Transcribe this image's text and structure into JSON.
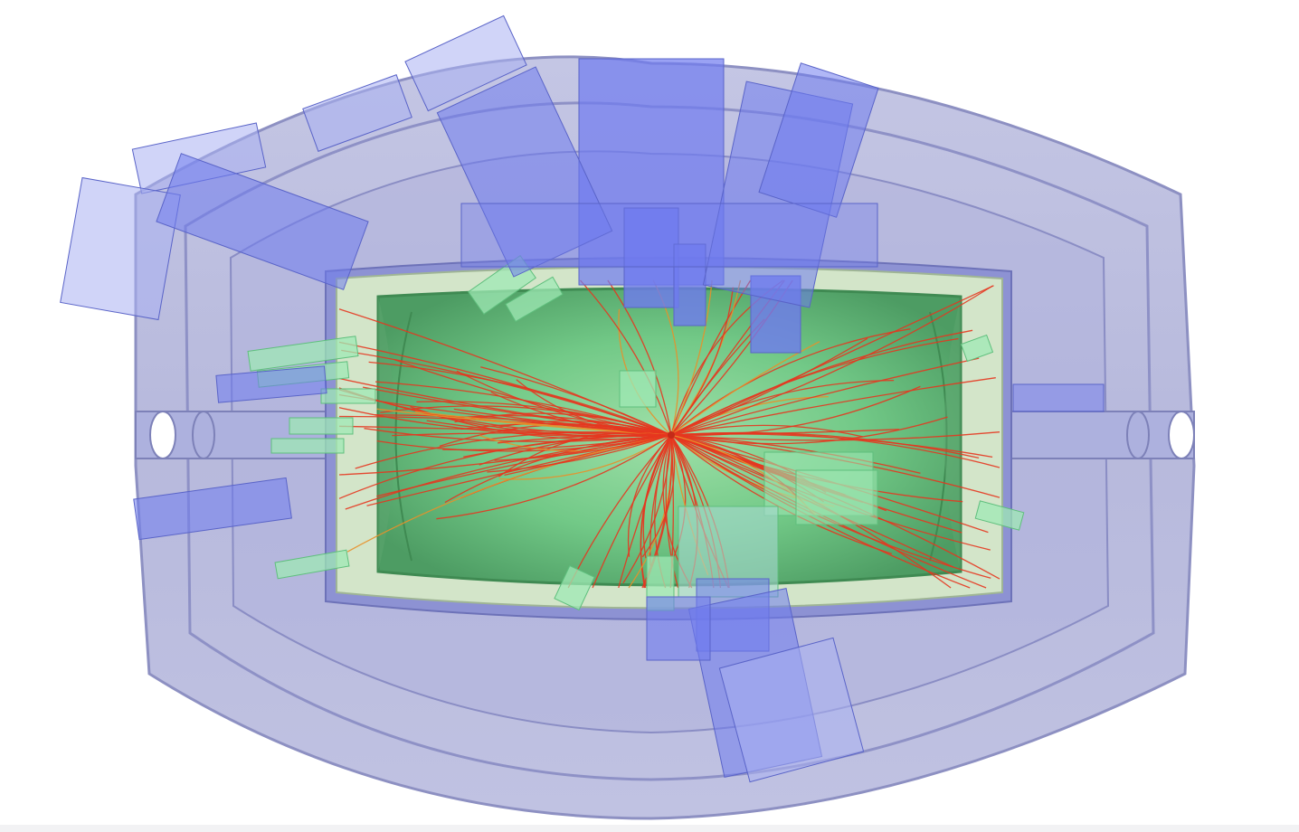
{
  "scene": {
    "subject": "particle-collision-event-display",
    "colors": {
      "background": "#ffffff",
      "outer_shell": "#b9bbdc",
      "outer_shell_edge": "#7f83b8",
      "inner_frame": "#9094cf",
      "calorimeter_pale": "#d3e6c9",
      "calorimeter_green": "#6fcb86",
      "calorimeter_green_dark": "#4f9e63",
      "energy_tower_blue": "#6f7bef",
      "energy_tower_light": "#aab1f3",
      "energy_cluster_green": "#9fe8b4",
      "particle_track_red": "#e5361f",
      "particle_track_orange": "#e8902a"
    }
  }
}
